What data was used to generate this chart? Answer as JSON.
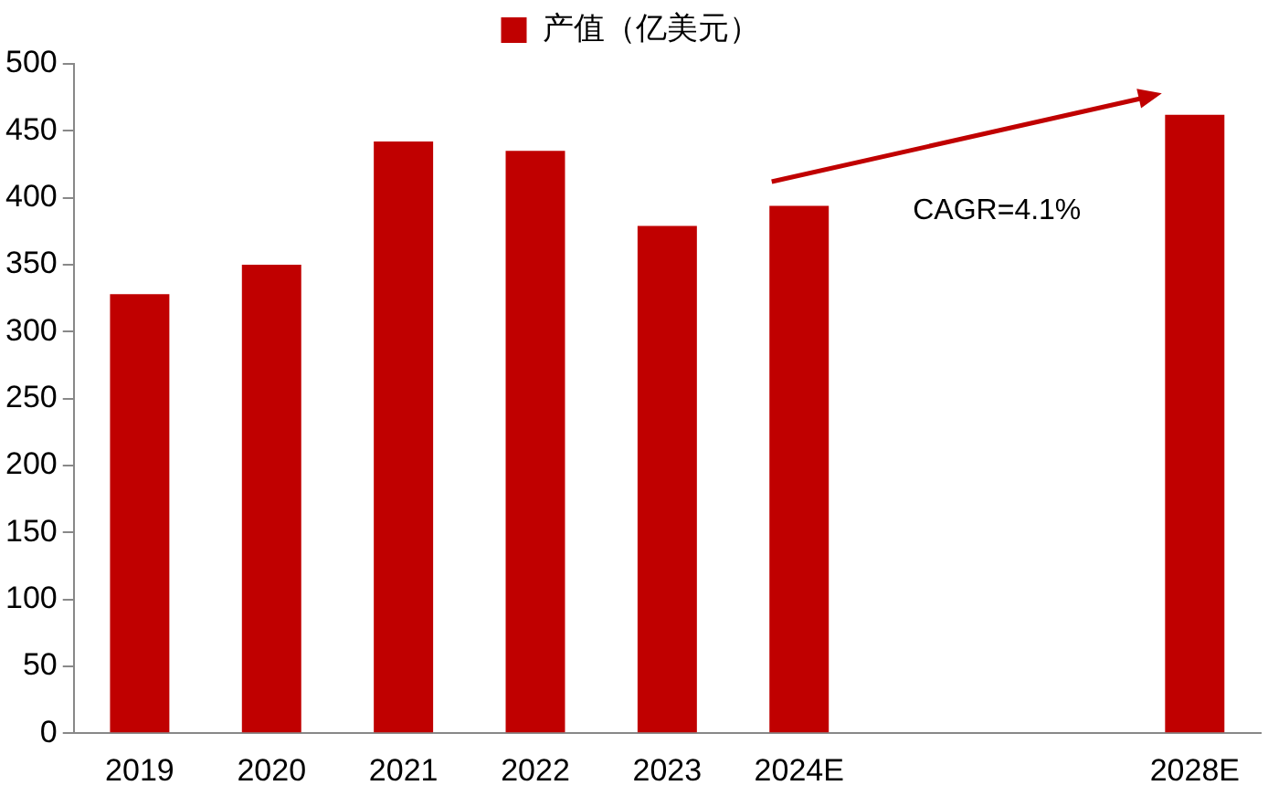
{
  "chart_data": {
    "type": "bar",
    "categories": [
      "2019",
      "2020",
      "2021",
      "2022",
      "2023",
      "2024E",
      null,
      null,
      "2028E"
    ],
    "series": [
      {
        "name": "产值（亿美元）",
        "color": "#c00000",
        "values": [
          328,
          350,
          442,
          435,
          379,
          394,
          null,
          null,
          462
        ]
      }
    ],
    "ylim": [
      0,
      500
    ],
    "yticks": [
      0,
      50,
      100,
      150,
      200,
      250,
      300,
      350,
      400,
      450,
      500
    ],
    "grid": false,
    "legend": "top",
    "annotations": [
      "CAGR=4.1%"
    ]
  }
}
